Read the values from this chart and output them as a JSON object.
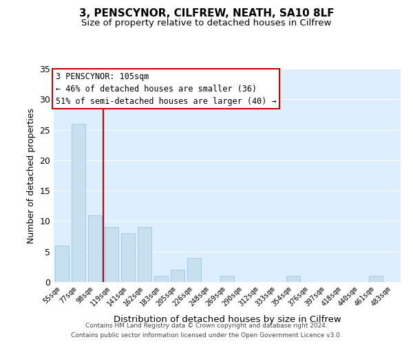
{
  "title": "3, PENSCYNOR, CILFREW, NEATH, SA10 8LF",
  "subtitle": "Size of property relative to detached houses in Cilfrew",
  "xlabel": "Distribution of detached houses by size in Cilfrew",
  "ylabel": "Number of detached properties",
  "bar_color": "#c8dff0",
  "bar_edge_color": "#a8c8e8",
  "categories": [
    "55sqm",
    "77sqm",
    "98sqm",
    "119sqm",
    "141sqm",
    "162sqm",
    "183sqm",
    "205sqm",
    "226sqm",
    "248sqm",
    "269sqm",
    "290sqm",
    "312sqm",
    "333sqm",
    "354sqm",
    "376sqm",
    "397sqm",
    "418sqm",
    "440sqm",
    "461sqm",
    "483sqm"
  ],
  "values": [
    6,
    26,
    11,
    9,
    8,
    9,
    1,
    2,
    4,
    0,
    1,
    0,
    0,
    0,
    1,
    0,
    0,
    0,
    0,
    1,
    0
  ],
  "property_line_color": "#cc0000",
  "property_line_index": 2,
  "ylim": [
    0,
    35
  ],
  "yticks": [
    0,
    5,
    10,
    15,
    20,
    25,
    30,
    35
  ],
  "annotation_line1": "3 PENSCYNOR: 105sqm",
  "annotation_line2": "← 46% of detached houses are smaller (36)",
  "annotation_line3": "51% of semi-detached houses are larger (40) →",
  "annotation_box_color": "#ffffff",
  "annotation_box_edge": "#cc0000",
  "footer_line1": "Contains HM Land Registry data © Crown copyright and database right 2024.",
  "footer_line2": "Contains public sector information licensed under the Open Government Licence v3.0.",
  "background_color": "#ffffff",
  "plot_bg_color": "#ddeeff",
  "grid_color": "#ffffff"
}
